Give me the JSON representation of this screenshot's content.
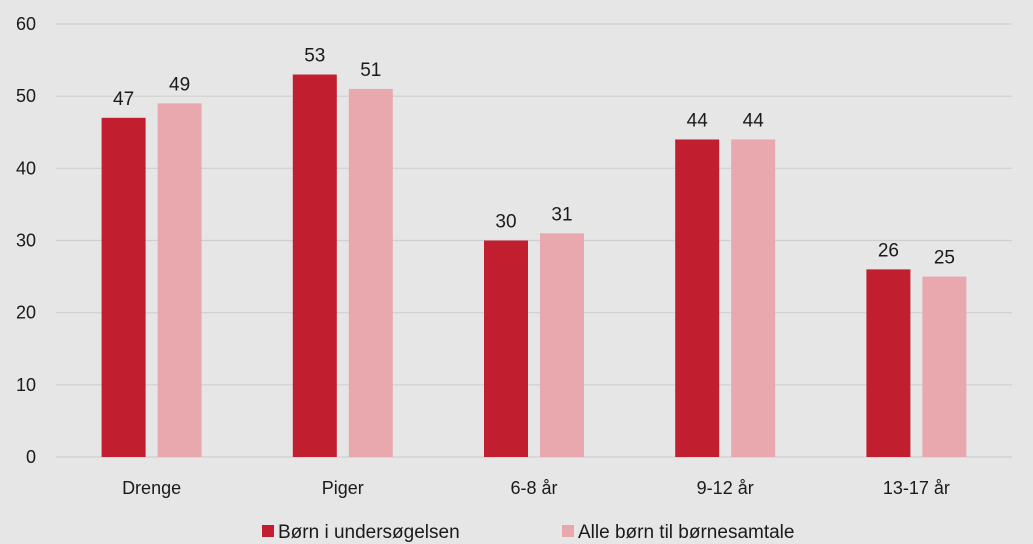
{
  "chart_data": {
    "type": "bar",
    "categories": [
      "Drenge",
      "Piger",
      "6-8 år",
      "9-12 år",
      "13-17 år"
    ],
    "series": [
      {
        "name": "Børn i undersøgelsen",
        "values": [
          47,
          53,
          30,
          44,
          26
        ],
        "color": "#c11f30"
      },
      {
        "name": "Alle børn til børnesamtale",
        "values": [
          49,
          51,
          31,
          44,
          25
        ],
        "color": "#e8a8ad"
      }
    ],
    "yticks": [
      0,
      10,
      20,
      30,
      40,
      50,
      60
    ],
    "ylim": [
      0,
      60
    ],
    "grid": true,
    "legend_position": "bottom",
    "title": "",
    "xlabel": "",
    "ylabel": ""
  },
  "colors": {
    "background": "#e6e6e7",
    "gridline": "#cfcfd1"
  }
}
